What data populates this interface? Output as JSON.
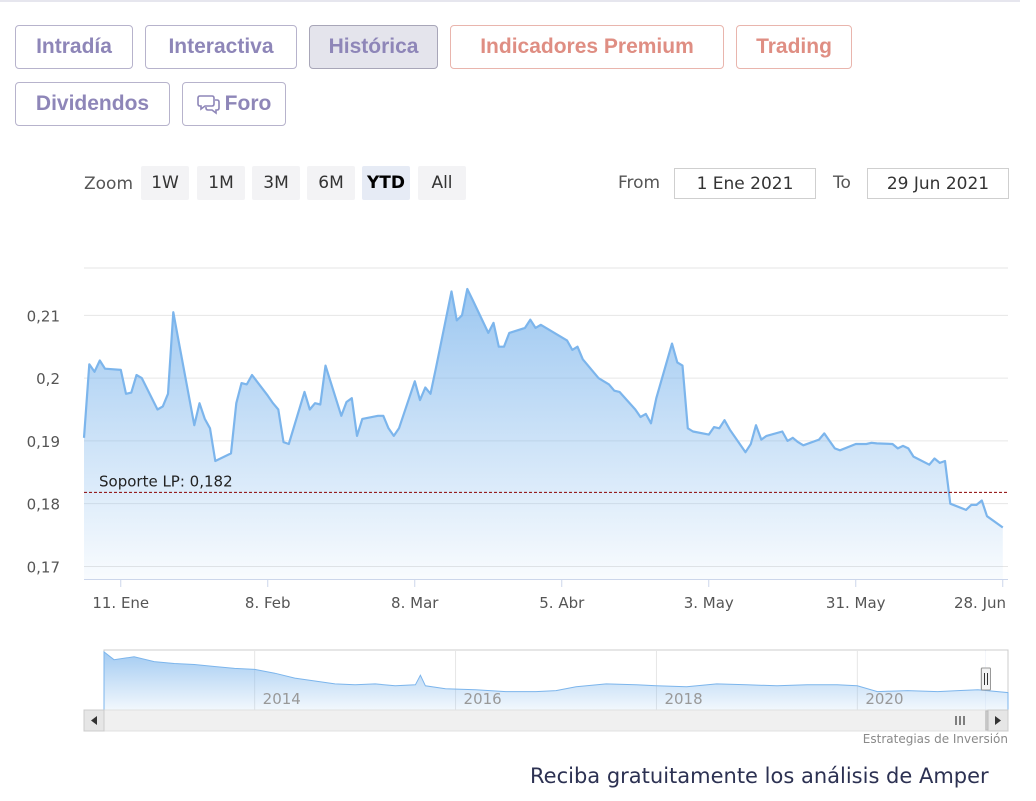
{
  "tabs": {
    "intradia": "Intradía",
    "interactiva": "Interactiva",
    "historica": "Histórica",
    "indicadores": "Indicadores Premium",
    "trading": "Trading",
    "dividendos": "Dividendos",
    "foro": "Foro"
  },
  "range_selector": {
    "zoom_label": "Zoom",
    "buttons": [
      "1W",
      "1M",
      "3M",
      "6M",
      "YTD",
      "All"
    ],
    "selected": "YTD",
    "from_label": "From",
    "from_value": "1 Ene 2021",
    "to_label": "To",
    "to_value": "29 Jun 2021"
  },
  "colors": {
    "line": "#7cb5ec",
    "support": "#8b0000",
    "tab_text": "#8e86b8",
    "premium": "#df8e83"
  },
  "chart_data": {
    "type": "area",
    "y_ticks": [
      "0,17",
      "0,18",
      "0,19",
      "0,2",
      "0,21"
    ],
    "ylim": [
      0.168,
      0.222
    ],
    "x_ticks": [
      "11. Ene",
      "8. Feb",
      "8. Mar",
      "5. Abr",
      "3. May",
      "31. May",
      "28. Jun"
    ],
    "x_range": [
      "2021-01-04",
      "2021-06-29"
    ],
    "series": [
      {
        "points": [
          [
            "2021-01-04",
            0.1905
          ],
          [
            "2021-01-05",
            0.2022
          ],
          [
            "2021-01-06",
            0.201
          ],
          [
            "2021-01-07",
            0.2028
          ],
          [
            "2021-01-08",
            0.2015
          ],
          [
            "2021-01-11",
            0.2013
          ],
          [
            "2021-01-12",
            0.1975
          ],
          [
            "2021-01-13",
            0.1977
          ],
          [
            "2021-01-14",
            0.2005
          ],
          [
            "2021-01-15",
            0.2
          ],
          [
            "2021-01-18",
            0.195
          ],
          [
            "2021-01-19",
            0.1955
          ],
          [
            "2021-01-20",
            0.1975
          ],
          [
            "2021-01-21",
            0.2105
          ],
          [
            "2021-01-22",
            0.206
          ],
          [
            "2021-01-25",
            0.1925
          ],
          [
            "2021-01-26",
            0.196
          ],
          [
            "2021-01-27",
            0.1935
          ],
          [
            "2021-01-28",
            0.192
          ],
          [
            "2021-01-29",
            0.1868
          ],
          [
            "2021-02-01",
            0.188
          ],
          [
            "2021-02-02",
            0.196
          ],
          [
            "2021-02-03",
            0.1992
          ],
          [
            "2021-02-04",
            0.199
          ],
          [
            "2021-02-05",
            0.2005
          ],
          [
            "2021-02-08",
            0.1972
          ],
          [
            "2021-02-09",
            0.196
          ],
          [
            "2021-02-10",
            0.195
          ],
          [
            "2021-02-11",
            0.1898
          ],
          [
            "2021-02-12",
            0.1895
          ],
          [
            "2021-02-15",
            0.1978
          ],
          [
            "2021-02-16",
            0.195
          ],
          [
            "2021-02-17",
            0.196
          ],
          [
            "2021-02-18",
            0.1958
          ],
          [
            "2021-02-19",
            0.202
          ],
          [
            "2021-02-22",
            0.194
          ],
          [
            "2021-02-23",
            0.1962
          ],
          [
            "2021-02-24",
            0.1968
          ],
          [
            "2021-02-25",
            0.1908
          ],
          [
            "2021-02-26",
            0.1935
          ],
          [
            "2021-03-01",
            0.194
          ],
          [
            "2021-03-02",
            0.194
          ],
          [
            "2021-03-03",
            0.192
          ],
          [
            "2021-03-04",
            0.1908
          ],
          [
            "2021-03-05",
            0.192
          ],
          [
            "2021-03-08",
            0.1995
          ],
          [
            "2021-03-09",
            0.1965
          ],
          [
            "2021-03-10",
            0.1985
          ],
          [
            "2021-03-11",
            0.1975
          ],
          [
            "2021-03-12",
            0.2015
          ],
          [
            "2021-03-15",
            0.2138
          ],
          [
            "2021-03-16",
            0.2092
          ],
          [
            "2021-03-17",
            0.21
          ],
          [
            "2021-03-18",
            0.2142
          ],
          [
            "2021-03-19",
            0.2125
          ],
          [
            "2021-03-22",
            0.2072
          ],
          [
            "2021-03-23",
            0.2088
          ],
          [
            "2021-03-24",
            0.205
          ],
          [
            "2021-03-25",
            0.205
          ],
          [
            "2021-03-26",
            0.2072
          ],
          [
            "2021-03-29",
            0.208
          ],
          [
            "2021-03-30",
            0.2093
          ],
          [
            "2021-03-31",
            0.208
          ],
          [
            "2021-04-01",
            0.2085
          ],
          [
            "2021-04-06",
            0.206
          ],
          [
            "2021-04-07",
            0.2045
          ],
          [
            "2021-04-08",
            0.205
          ],
          [
            "2021-04-09",
            0.203
          ],
          [
            "2021-04-12",
            0.2
          ],
          [
            "2021-04-13",
            0.1995
          ],
          [
            "2021-04-14",
            0.199
          ],
          [
            "2021-04-15",
            0.198
          ],
          [
            "2021-04-16",
            0.1978
          ],
          [
            "2021-04-19",
            0.195
          ],
          [
            "2021-04-20",
            0.1938
          ],
          [
            "2021-04-21",
            0.1943
          ],
          [
            "2021-04-22",
            0.1928
          ],
          [
            "2021-04-23",
            0.1968
          ],
          [
            "2021-04-26",
            0.2055
          ],
          [
            "2021-04-27",
            0.2025
          ],
          [
            "2021-04-28",
            0.202
          ],
          [
            "2021-04-29",
            0.192
          ],
          [
            "2021-04-30",
            0.1915
          ],
          [
            "2021-05-03",
            0.191
          ],
          [
            "2021-05-04",
            0.1922
          ],
          [
            "2021-05-05",
            0.192
          ],
          [
            "2021-05-06",
            0.1933
          ],
          [
            "2021-05-07",
            0.1918
          ],
          [
            "2021-05-10",
            0.1882
          ],
          [
            "2021-05-11",
            0.1895
          ],
          [
            "2021-05-12",
            0.1925
          ],
          [
            "2021-05-13",
            0.1902
          ],
          [
            "2021-05-14",
            0.1908
          ],
          [
            "2021-05-17",
            0.1915
          ],
          [
            "2021-05-18",
            0.19
          ],
          [
            "2021-05-19",
            0.1905
          ],
          [
            "2021-05-20",
            0.1898
          ],
          [
            "2021-05-21",
            0.1893
          ],
          [
            "2021-05-24",
            0.1902
          ],
          [
            "2021-05-25",
            0.1912
          ],
          [
            "2021-05-26",
            0.19
          ],
          [
            "2021-05-27",
            0.1888
          ],
          [
            "2021-05-28",
            0.1885
          ],
          [
            "2021-05-31",
            0.1895
          ],
          [
            "2021-06-01",
            0.1895
          ],
          [
            "2021-06-02",
            0.1895
          ],
          [
            "2021-06-03",
            0.1897
          ],
          [
            "2021-06-04",
            0.1896
          ],
          [
            "2021-06-07",
            0.1895
          ],
          [
            "2021-06-08",
            0.1888
          ],
          [
            "2021-06-09",
            0.1892
          ],
          [
            "2021-06-10",
            0.1888
          ],
          [
            "2021-06-11",
            0.1875
          ],
          [
            "2021-06-14",
            0.1862
          ],
          [
            "2021-06-15",
            0.1872
          ],
          [
            "2021-06-16",
            0.1865
          ],
          [
            "2021-06-17",
            0.1868
          ],
          [
            "2021-06-18",
            0.18
          ],
          [
            "2021-06-21",
            0.179
          ],
          [
            "2021-06-22",
            0.1798
          ],
          [
            "2021-06-23",
            0.1798
          ],
          [
            "2021-06-24",
            0.1805
          ],
          [
            "2021-06-25",
            0.178
          ],
          [
            "2021-06-28",
            0.1762
          ]
        ]
      }
    ],
    "annotations": [
      {
        "label": "Soporte LP: 0,182",
        "y": 0.1818
      }
    ],
    "grid": true,
    "navigator": {
      "x_ticks": [
        "2014",
        "2016",
        "2018",
        "2020"
      ],
      "x_range": [
        2012.5,
        2021.5
      ],
      "series": [
        [
          2012.5,
          0.6
        ],
        [
          2012.6,
          0.52
        ],
        [
          2012.8,
          0.55
        ],
        [
          2013.0,
          0.5
        ],
        [
          2013.2,
          0.48
        ],
        [
          2013.4,
          0.47
        ],
        [
          2013.6,
          0.45
        ],
        [
          2013.8,
          0.43
        ],
        [
          2014.0,
          0.42
        ],
        [
          2014.2,
          0.38
        ],
        [
          2014.4,
          0.33
        ],
        [
          2014.6,
          0.3
        ],
        [
          2014.8,
          0.27
        ],
        [
          2015.0,
          0.26
        ],
        [
          2015.2,
          0.27
        ],
        [
          2015.4,
          0.25
        ],
        [
          2015.6,
          0.26
        ],
        [
          2015.65,
          0.36
        ],
        [
          2015.7,
          0.25
        ],
        [
          2015.9,
          0.22
        ],
        [
          2016.2,
          0.21
        ],
        [
          2016.5,
          0.19
        ],
        [
          2016.8,
          0.19
        ],
        [
          2017.0,
          0.2
        ],
        [
          2017.2,
          0.24
        ],
        [
          2017.5,
          0.27
        ],
        [
          2017.8,
          0.26
        ],
        [
          2018.0,
          0.25
        ],
        [
          2018.3,
          0.24
        ],
        [
          2018.6,
          0.27
        ],
        [
          2018.9,
          0.26
        ],
        [
          2019.2,
          0.25
        ],
        [
          2019.5,
          0.26
        ],
        [
          2019.8,
          0.26
        ],
        [
          2020.0,
          0.25
        ],
        [
          2020.2,
          0.19
        ],
        [
          2020.5,
          0.2
        ],
        [
          2020.8,
          0.19
        ],
        [
          2021.0,
          0.2
        ],
        [
          2021.2,
          0.21
        ],
        [
          2021.5,
          0.18
        ]
      ],
      "selection": [
        2021.0,
        2021.5
      ]
    }
  },
  "credit": "Estrategias de Inversión",
  "cta": "Reciba gratuitamente los análisis de Amper"
}
